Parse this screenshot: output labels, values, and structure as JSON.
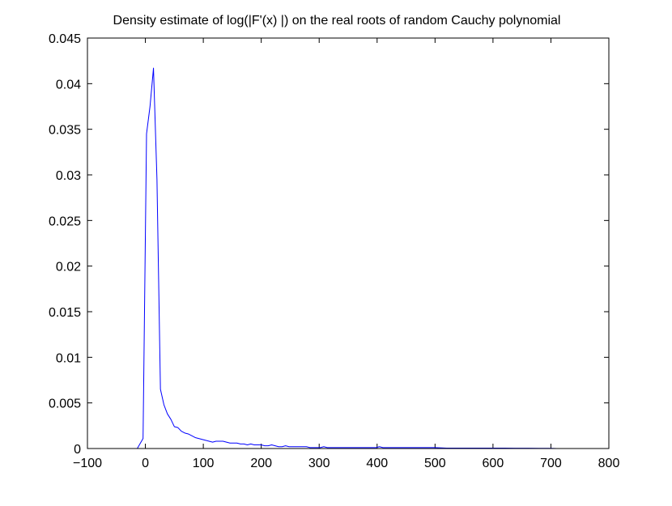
{
  "chart_data": {
    "type": "line",
    "title": "Density estimate of log(|F'(x) |) on the real roots of random Cauchy polynomial",
    "xlabel": "",
    "ylabel": "",
    "xlim": [
      -100,
      800
    ],
    "ylim": [
      0,
      0.045
    ],
    "xticks": [
      -100,
      0,
      100,
      200,
      300,
      400,
      500,
      600,
      700,
      800
    ],
    "yticks": [
      0,
      0.005,
      0.01,
      0.015,
      0.02,
      0.025,
      0.03,
      0.035,
      0.04,
      0.045
    ],
    "xtick_labels": [
      "−100",
      "0",
      "100",
      "200",
      "300",
      "400",
      "500",
      "600",
      "700",
      "800"
    ],
    "ytick_labels": [
      "0",
      "0.005",
      "0.01",
      "0.015",
      "0.02",
      "0.025",
      "0.03",
      "0.035",
      "0.04",
      "0.045"
    ],
    "grid": false,
    "legend": "none",
    "series": [
      {
        "color": "#0000ff",
        "x": [
          -14,
          -4,
          2,
          8,
          14,
          20,
          26,
          32,
          38,
          44,
          50,
          56,
          62,
          68,
          74,
          80,
          86,
          92,
          98,
          104,
          110,
          116,
          122,
          128,
          134,
          140,
          146,
          152,
          158,
          164,
          170,
          176,
          182,
          188,
          194,
          200,
          206,
          212,
          218,
          224,
          230,
          236,
          242,
          248,
          254,
          260,
          266,
          272,
          278,
          284,
          290,
          296,
          302,
          308,
          314,
          320,
          326,
          332,
          338,
          344,
          350,
          356,
          362,
          368,
          374,
          380,
          386,
          392,
          398,
          404,
          410,
          416,
          422,
          428,
          434,
          440,
          446,
          452,
          458,
          464,
          470,
          476,
          482,
          488,
          494,
          500,
          520,
          540,
          560,
          580,
          600,
          620,
          640,
          660,
          680,
          700,
          710
        ],
        "y": [
          0,
          0.0011,
          0.0345,
          0.0375,
          0.0417,
          0.0295,
          0.0065,
          0.0048,
          0.0038,
          0.0032,
          0.0024,
          0.0023,
          0.0019,
          0.0017,
          0.0016,
          0.0014,
          0.0012,
          0.0011,
          0.001,
          0.0009,
          0.0008,
          0.0007,
          0.0008,
          0.0008,
          0.0008,
          0.0007,
          0.0006,
          0.0006,
          0.0006,
          0.0005,
          0.0005,
          0.0004,
          0.0005,
          0.0004,
          0.0004,
          0.0004,
          0.0003,
          0.0003,
          0.0004,
          0.0003,
          0.0002,
          0.0002,
          0.0003,
          0.0002,
          0.0002,
          0.0002,
          0.0002,
          0.0002,
          0.0002,
          0.0001,
          0.0001,
          0.0001,
          0.0001,
          0.0002,
          0.0001,
          0.0001,
          0.0001,
          0.0001,
          0.0001,
          0.0001,
          0.0001,
          0.0001,
          0.0001,
          0.0001,
          0.0001,
          0.0001,
          0.0001,
          0.0001,
          0.0001,
          0.0002,
          0.0001,
          0.0001,
          0.0001,
          0.0001,
          0.0001,
          0.0001,
          0.0001,
          0.0001,
          0.0001,
          0.0001,
          0.0001,
          0.0001,
          0.0001,
          0.0001,
          0.0001,
          0.0001,
          5e-05,
          5e-05,
          5e-05,
          5e-05,
          4e-05,
          4e-05,
          3e-05,
          3e-05,
          2e-05,
          2e-05,
          0
        ]
      }
    ]
  }
}
